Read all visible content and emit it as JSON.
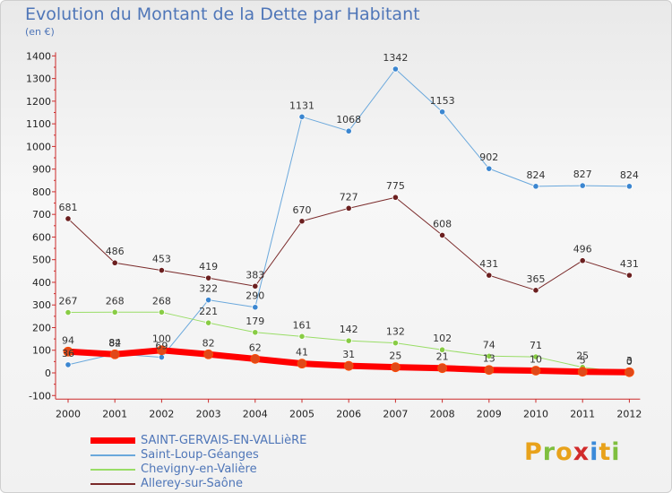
{
  "title": "Evolution du Montant de la Dette par Habitant",
  "subtitle": "(en €)",
  "logo": {
    "text": "Proxiti",
    "colors": [
      "#e8a21b",
      "#7fbf3f",
      "#e8a21b",
      "#d12b2b",
      "#3b8ad9",
      "#e8a21b",
      "#7fbf3f"
    ]
  },
  "chart_data": {
    "type": "line",
    "title": "Evolution du Montant de la Dette par Habitant",
    "subtitle": "(en €)",
    "xlabel": "",
    "ylabel": "",
    "ylim": [
      -100,
      1400
    ],
    "yticks": [
      -100,
      0,
      100,
      200,
      300,
      400,
      500,
      600,
      700,
      800,
      900,
      1000,
      1100,
      1200,
      1300,
      1400
    ],
    "x": [
      "2000",
      "2001",
      "2002",
      "2003",
      "2004",
      "2005",
      "2006",
      "2007",
      "2008",
      "2009",
      "2010",
      "2011",
      "2012"
    ],
    "grid": false,
    "legend_position": "bottom-left",
    "series": [
      {
        "name": "SAINT-GERVAIS-EN-VALLièRE",
        "color": "#ff0000",
        "marker": "#e0491a",
        "width": 7,
        "values": [
          94,
          82,
          100,
          82,
          62,
          41,
          31,
          25,
          21,
          13,
          10,
          5,
          3
        ]
      },
      {
        "name": "Saint-Loup-Géanges",
        "color": "#6aa8dc",
        "marker": "#3b86d0",
        "width": 1,
        "values": [
          36,
          84,
          69,
          322,
          290,
          1131,
          1068,
          1342,
          1153,
          902,
          824,
          827,
          824
        ]
      },
      {
        "name": "Chevigny-en-Valière",
        "color": "#99dd66",
        "marker": "#88cc44",
        "width": 1,
        "values": [
          267,
          268,
          268,
          221,
          179,
          161,
          142,
          132,
          102,
          74,
          71,
          25,
          0
        ]
      },
      {
        "name": "Allerey-sur-Saône",
        "color": "#7a2a2a",
        "marker": "#6b1f1f",
        "width": 1,
        "values": [
          681,
          486,
          453,
          419,
          383,
          670,
          727,
          775,
          608,
          431,
          365,
          496,
          431
        ]
      }
    ]
  }
}
